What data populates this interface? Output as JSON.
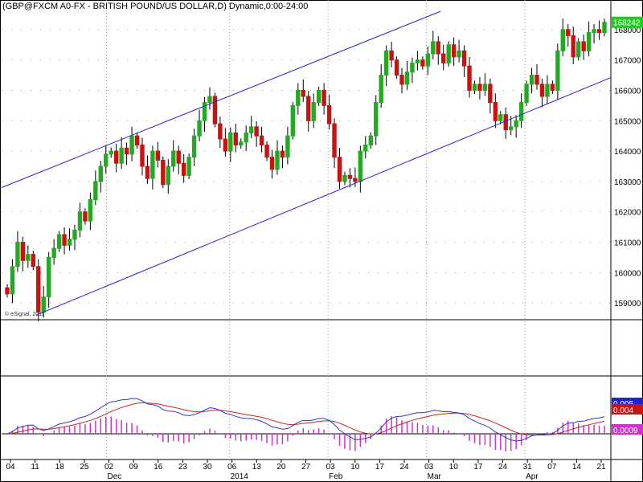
{
  "header": {
    "title": "(GBP@FXCM A0-FX - BRITISH POUND/US DOLLAR,D) Dynamic,0:00-24:00",
    "credit": "© eSignal, 2011"
  },
  "colors": {
    "up": "#22aa22",
    "down": "#cc1111",
    "channel": "#2222cc",
    "macd": "#3333cc",
    "signal": "#cc2222",
    "hist": "#cc33cc",
    "grid": "#999999"
  },
  "chart_data": [
    {
      "type": "candlestick",
      "panel": "price",
      "ylim": [
        1.5845,
        1.6855
      ],
      "yticks": [
        {
          "v": 1.59,
          "label": "159000"
        },
        {
          "v": 1.6,
          "label": "160000"
        },
        {
          "v": 1.61,
          "label": "161000"
        },
        {
          "v": 1.62,
          "label": "162000"
        },
        {
          "v": 1.63,
          "label": "163000"
        },
        {
          "v": 1.64,
          "label": "164000"
        },
        {
          "v": 1.65,
          "label": "165000"
        },
        {
          "v": 1.66,
          "label": "166000"
        },
        {
          "v": 1.67,
          "label": "167000"
        },
        {
          "v": 1.68,
          "label": "168000"
        }
      ],
      "last_price": {
        "v": 1.6824,
        "label": "168242",
        "color": "#22cc22"
      },
      "xticks": [
        "04",
        "11",
        "18",
        "25",
        "02",
        "09",
        "16",
        "23",
        "30",
        "06",
        "13",
        "20",
        "27",
        "03",
        "10",
        "17",
        "24",
        "03",
        "10",
        "17",
        "24",
        "31",
        "07",
        "14",
        "21"
      ],
      "months": [
        {
          "label": "Dec",
          "index": 4
        },
        {
          "label": "2014",
          "index": 9
        },
        {
          "label": "Feb",
          "index": 13
        },
        {
          "label": "Mar",
          "index": 17
        },
        {
          "label": "Apr",
          "index": 21
        }
      ],
      "closes": [
        1.593,
        1.602,
        1.61,
        1.604,
        1.606,
        1.602,
        1.587,
        1.592,
        1.605,
        1.608,
        1.6125,
        1.609,
        1.611,
        1.614,
        1.62,
        1.617,
        1.624,
        1.63,
        1.635,
        1.639,
        1.64,
        1.636,
        1.641,
        1.639,
        1.645,
        1.642,
        1.635,
        1.631,
        1.64,
        1.637,
        1.629,
        1.635,
        1.64,
        1.636,
        1.632,
        1.638,
        1.645,
        1.65,
        1.656,
        1.658,
        1.649,
        1.644,
        1.64,
        1.646,
        1.642,
        1.643,
        1.646,
        1.648,
        1.645,
        1.642,
        1.638,
        1.634,
        1.64,
        1.638,
        1.645,
        1.655,
        1.66,
        1.658,
        1.65,
        1.656,
        1.66,
        1.655,
        1.649,
        1.638,
        1.63,
        1.632,
        1.631,
        1.63,
        1.64,
        1.642,
        1.645,
        1.656,
        1.665,
        1.673,
        1.67,
        1.665,
        1.662,
        1.666,
        1.669,
        1.67,
        1.668,
        1.672,
        1.676,
        1.672,
        1.669,
        1.675,
        1.671,
        1.673,
        1.668,
        1.66,
        1.662,
        1.66,
        1.662,
        1.656,
        1.65,
        1.652,
        1.647,
        1.648,
        1.65,
        1.656,
        1.662,
        1.665,
        1.662,
        1.658,
        1.662,
        1.66,
        1.673,
        1.68,
        1.678,
        1.671,
        1.676,
        1.673,
        1.679,
        1.68,
        1.679,
        1.6824
      ]
    },
    {
      "type": "macd",
      "panel": "indicator",
      "values_shown": {
        "macd": "0.005",
        "signal": "0.004",
        "histogram": "0.0009"
      }
    }
  ]
}
